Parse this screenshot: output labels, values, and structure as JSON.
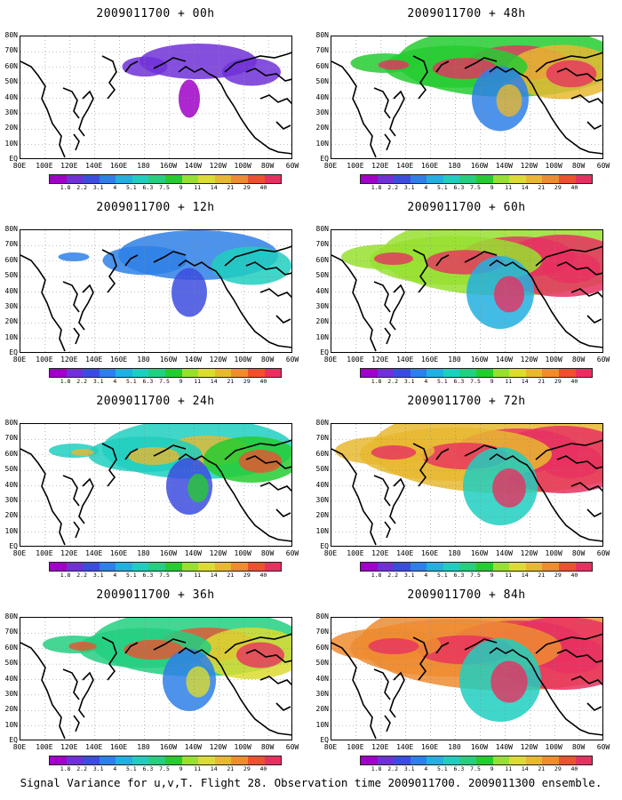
{
  "lat_labels": [
    "80N",
    "70N",
    "60N",
    "50N",
    "40N",
    "30N",
    "20N",
    "10N",
    "EQ"
  ],
  "lon_labels": [
    "80E",
    "100E",
    "120E",
    "140E",
    "160E",
    "180",
    "160W",
    "140W",
    "120W",
    "100W",
    "80W",
    "60W"
  ],
  "colorbar": {
    "colors": [
      "#a000c8",
      "#7030d8",
      "#3c4ce0",
      "#2e80e8",
      "#22b0e0",
      "#1ecfc0",
      "#22d080",
      "#24cc30",
      "#98e030",
      "#dcdc30",
      "#e8b830",
      "#ee8c30",
      "#ee5030",
      "#e83060"
    ],
    "labels": [
      "1.8",
      "2.2",
      "3.1",
      "4",
      "5.1",
      "6.3",
      "7.5",
      "9",
      "11",
      "14",
      "21",
      "29",
      "40"
    ]
  },
  "panels": [
    {
      "id": "00h",
      "title": "2009011700 + 00h",
      "level": 0.05
    },
    {
      "id": "48h",
      "title": "2009011700 + 48h",
      "level": 0.55
    },
    {
      "id": "12h",
      "title": "2009011700 + 12h",
      "level": 0.25
    },
    {
      "id": "60h",
      "title": "2009011700 + 60h",
      "level": 0.7
    },
    {
      "id": "24h",
      "title": "2009011700 + 24h",
      "level": 0.4
    },
    {
      "id": "72h",
      "title": "2009011700 + 72h",
      "level": 0.8
    },
    {
      "id": "36h",
      "title": "2009011700 + 36h",
      "level": 0.5
    },
    {
      "id": "84h",
      "title": "2009011700 + 84h",
      "level": 0.9
    }
  ],
  "caption": "Signal Variance for u,v,T. Flight 28. Observation time 2009011700. 2009011300 ensemble."
}
